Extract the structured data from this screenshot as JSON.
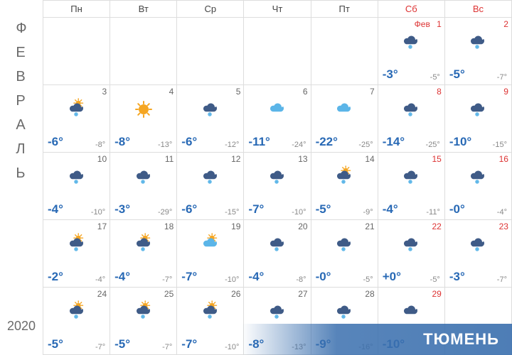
{
  "sidebar": {
    "month_letters": [
      "Ф",
      "Е",
      "В",
      "Р",
      "А",
      "Л",
      "Ь"
    ],
    "year": "2020"
  },
  "header": [
    "Пн",
    "Вт",
    "Ср",
    "Чт",
    "Пт",
    "Сб",
    "Вс"
  ],
  "banner": "ТЮМЕНЬ",
  "colors": {
    "hi": "#2869b5",
    "lo": "#888888",
    "weekend": "#d33333",
    "cloud_dark": "#3f5b87",
    "cloud_light": "#5bb5e8",
    "sun": "#f5a623"
  },
  "iconSize": 32,
  "weeks": [
    [
      {
        "empty": true
      },
      {
        "empty": true
      },
      {
        "empty": true
      },
      {
        "empty": true
      },
      {
        "empty": true
      },
      {
        "day": "1",
        "month": "Фев",
        "icon": "snow",
        "hi": "-3°",
        "lo": "-5°",
        "we": true
      },
      {
        "day": "2",
        "icon": "snow",
        "hi": "-5°",
        "lo": "-7°",
        "we": true
      }
    ],
    [
      {
        "day": "3",
        "icon": "snow_sun",
        "hi": "-6°",
        "lo": "-8°"
      },
      {
        "day": "4",
        "icon": "sun",
        "hi": "-8°",
        "lo": "-13°"
      },
      {
        "day": "5",
        "icon": "snow",
        "hi": "-6°",
        "lo": "-12°"
      },
      {
        "day": "6",
        "icon": "cloud_light",
        "hi": "-11°",
        "lo": "-24°"
      },
      {
        "day": "7",
        "icon": "cloud_light",
        "hi": "-22°",
        "lo": "-25°"
      },
      {
        "day": "8",
        "icon": "snow",
        "hi": "-14°",
        "lo": "-25°",
        "we": true
      },
      {
        "day": "9",
        "icon": "snow",
        "hi": "-10°",
        "lo": "-15°",
        "we": true
      }
    ],
    [
      {
        "day": "10",
        "icon": "snow",
        "hi": "-4°",
        "lo": "-10°"
      },
      {
        "day": "11",
        "icon": "snow",
        "hi": "-3°",
        "lo": "-29°"
      },
      {
        "day": "12",
        "icon": "snow",
        "hi": "-6°",
        "lo": "-15°"
      },
      {
        "day": "13",
        "icon": "snow",
        "hi": "-7°",
        "lo": "-10°"
      },
      {
        "day": "14",
        "icon": "snow_sun",
        "hi": "-5°",
        "lo": "-9°"
      },
      {
        "day": "15",
        "icon": "snow",
        "hi": "-4°",
        "lo": "-11°",
        "we": true
      },
      {
        "day": "16",
        "icon": "snow",
        "hi": "-0°",
        "lo": "-4°",
        "we": true
      }
    ],
    [
      {
        "day": "17",
        "icon": "snow_sun",
        "hi": "-2°",
        "lo": "-4°"
      },
      {
        "day": "18",
        "icon": "snow_sun",
        "hi": "-4°",
        "lo": "-7°"
      },
      {
        "day": "19",
        "icon": "cloud_sun_light",
        "hi": "-7°",
        "lo": "-10°"
      },
      {
        "day": "20",
        "icon": "snow",
        "hi": "-4°",
        "lo": "-8°"
      },
      {
        "day": "21",
        "icon": "snow",
        "hi": "-0°",
        "lo": "-5°"
      },
      {
        "day": "22",
        "icon": "snow",
        "hi": "+0°",
        "lo": "-5°",
        "we": true
      },
      {
        "day": "23",
        "icon": "snow",
        "hi": "-3°",
        "lo": "-7°",
        "we": true
      }
    ],
    [
      {
        "day": "24",
        "icon": "snow_sun",
        "hi": "-5°",
        "lo": "-7°"
      },
      {
        "day": "25",
        "icon": "snow_sun",
        "hi": "-5°",
        "lo": "-7°"
      },
      {
        "day": "26",
        "icon": "snow_sun",
        "hi": "-7°",
        "lo": "-10°"
      },
      {
        "day": "27",
        "icon": "snow",
        "hi": "-8°",
        "lo": "-13°"
      },
      {
        "day": "28",
        "icon": "snow",
        "hi": "-9°",
        "lo": "-16°"
      },
      {
        "day": "29",
        "icon": "cloud_dark",
        "hi": "-10°",
        "lo": "",
        "we": true
      },
      {
        "empty": true,
        "we": true
      }
    ]
  ]
}
